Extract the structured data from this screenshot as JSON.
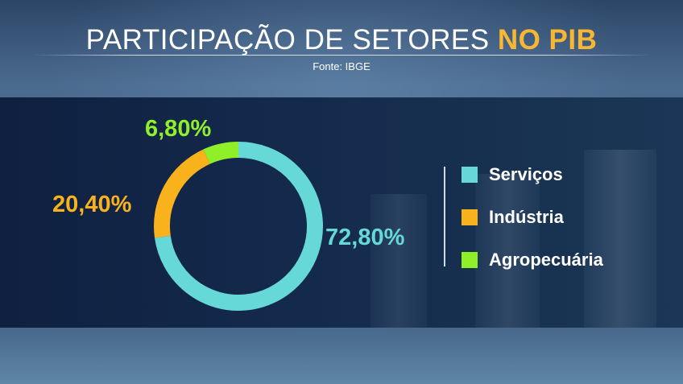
{
  "header": {
    "title_main": "PARTICIPAÇÃO DE SETORES",
    "title_highlight": "NO PIB",
    "source": "Fonte: IBGE"
  },
  "colors": {
    "servicos": "#66d8d8",
    "industria": "#f9b21c",
    "agro": "#8ff02a"
  },
  "chart_data": {
    "type": "pie",
    "variant": "donut",
    "title": "PARTICIPAÇÃO DE SETORES NO PIB",
    "source": "Fonte: IBGE",
    "legend_position": "right",
    "categories": [
      "Serviços",
      "Indústria",
      "Agropecuária"
    ],
    "values": [
      72.8,
      20.4,
      6.8
    ],
    "labels": [
      "72,80%",
      "20,40%",
      "6,80%"
    ]
  }
}
